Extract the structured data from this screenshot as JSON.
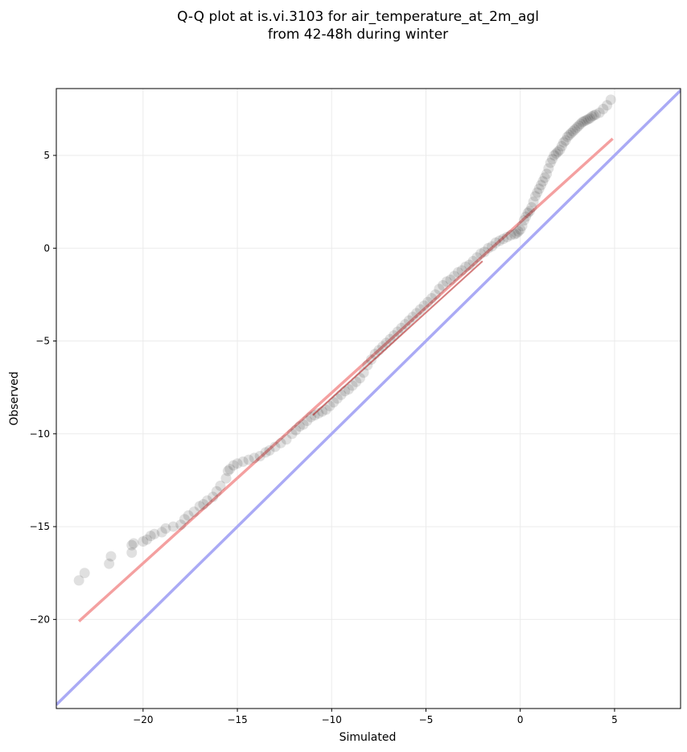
{
  "chart_data": {
    "type": "scatter",
    "title_lines": [
      "Q-Q plot at is.vi.3103 for air_temperature_at_2m_agl",
      "from 42-48h during winter"
    ],
    "xlabel": "Simulated",
    "ylabel": "Observed",
    "xlim": [
      -24.6,
      8.5
    ],
    "ylim": [
      -24.8,
      8.6
    ],
    "xticks": [
      -20,
      -15,
      -10,
      -5,
      0,
      5
    ],
    "yticks": [
      -20,
      -15,
      -10,
      -5,
      0,
      5
    ],
    "xtick_labels": [
      "−20",
      "−15",
      "−10",
      "−5",
      "0",
      "5"
    ],
    "ytick_labels": [
      "−20",
      "−15",
      "−10",
      "−5",
      "0",
      "5"
    ],
    "grid": true,
    "colors": {
      "points": "#000000",
      "fit_line": "#f4a0a0",
      "identity_line": "#aaaaf5",
      "grid": "#ebebeb"
    },
    "series": [
      {
        "kind": "quantile_points",
        "x": [
          -23.4,
          -23.1,
          -21.8,
          -21.7,
          -20.6,
          -20.6,
          -20.5,
          -20.0,
          -19.8,
          -19.6,
          -19.4,
          -19.0,
          -18.8,
          -18.4,
          -18.0,
          -17.8,
          -17.6,
          -17.3,
          -17.0,
          -16.8,
          -16.6,
          -16.3,
          -16.1,
          -15.9,
          -15.6,
          -15.5,
          -15.4,
          -15.2,
          -15.0,
          -14.7,
          -14.4,
          -14.1,
          -13.8,
          -13.5,
          -13.3,
          -13.0,
          -12.7,
          -12.4,
          -12.1,
          -11.9,
          -11.7,
          -11.5,
          -11.3,
          -11.1,
          -10.9,
          -10.7,
          -10.5,
          -10.3,
          -10.1,
          -9.9,
          -9.7,
          -9.5,
          -9.3,
          -9.1,
          -8.9,
          -8.7,
          -8.5,
          -8.3,
          -8.1,
          -7.9,
          -7.7,
          -7.5,
          -7.3,
          -7.1,
          -6.9,
          -6.7,
          -6.5,
          -6.3,
          -6.1,
          -5.9,
          -5.7,
          -5.5,
          -5.3,
          -5.1,
          -4.9,
          -4.7,
          -4.5,
          -4.3,
          -4.1,
          -3.9,
          -3.7,
          -3.5,
          -3.3,
          -3.1,
          -2.9,
          -2.7,
          -2.5,
          -2.3,
          -2.1,
          -1.9,
          -1.7,
          -1.5,
          -1.3,
          -1.1,
          -0.9,
          -0.7,
          -0.5,
          -0.3,
          -0.2,
          -0.1,
          0.0,
          0.1,
          0.2,
          0.3,
          0.4,
          0.5,
          0.6,
          0.7,
          0.8,
          0.9,
          1.0,
          1.1,
          1.2,
          1.3,
          1.4,
          1.5,
          1.6,
          1.7,
          1.8,
          1.9,
          2.0,
          2.1,
          2.2,
          2.3,
          2.4,
          2.5,
          2.6,
          2.7,
          2.8,
          2.9,
          3.0,
          3.1,
          3.2,
          3.3,
          3.4,
          3.5,
          3.6,
          3.7,
          3.8,
          3.9,
          4.0,
          4.2,
          4.4,
          4.6,
          4.8
        ],
        "y": [
          -17.9,
          -17.5,
          -17.0,
          -16.6,
          -16.4,
          -16.0,
          -15.9,
          -15.8,
          -15.7,
          -15.5,
          -15.4,
          -15.3,
          -15.1,
          -15.0,
          -14.9,
          -14.6,
          -14.4,
          -14.2,
          -13.9,
          -13.8,
          -13.6,
          -13.4,
          -13.1,
          -12.8,
          -12.4,
          -12.0,
          -11.9,
          -11.7,
          -11.6,
          -11.5,
          -11.4,
          -11.3,
          -11.2,
          -11.0,
          -10.9,
          -10.7,
          -10.5,
          -10.3,
          -10.0,
          -9.8,
          -9.6,
          -9.5,
          -9.3,
          -9.1,
          -9.0,
          -8.9,
          -8.8,
          -8.7,
          -8.5,
          -8.3,
          -8.1,
          -7.9,
          -7.7,
          -7.6,
          -7.4,
          -7.2,
          -7.0,
          -6.7,
          -6.3,
          -6.0,
          -5.7,
          -5.5,
          -5.3,
          -5.1,
          -4.9,
          -4.7,
          -4.5,
          -4.3,
          -4.1,
          -3.9,
          -3.7,
          -3.5,
          -3.3,
          -3.1,
          -2.9,
          -2.7,
          -2.5,
          -2.2,
          -2.0,
          -1.8,
          -1.7,
          -1.5,
          -1.3,
          -1.2,
          -1.0,
          -0.9,
          -0.7,
          -0.5,
          -0.3,
          -0.2,
          0.0,
          0.1,
          0.3,
          0.4,
          0.5,
          0.6,
          0.7,
          0.75,
          0.8,
          0.9,
          1.0,
          1.2,
          1.5,
          1.7,
          1.9,
          2.0,
          2.2,
          2.5,
          2.8,
          3.0,
          3.2,
          3.4,
          3.6,
          3.8,
          4.0,
          4.3,
          4.6,
          4.8,
          5.0,
          5.1,
          5.2,
          5.3,
          5.5,
          5.7,
          5.8,
          6.0,
          6.1,
          6.2,
          6.3,
          6.4,
          6.5,
          6.6,
          6.7,
          6.8,
          6.85,
          6.9,
          6.95,
          7.0,
          7.1,
          7.15,
          7.2,
          7.3,
          7.5,
          7.7,
          8.0
        ]
      },
      {
        "kind": "fit_line",
        "x": [
          -23.4,
          4.9
        ],
        "y": [
          -20.1,
          5.9
        ]
      },
      {
        "kind": "identity_line",
        "x": [
          -24.6,
          8.5
        ],
        "y": [
          -24.6,
          8.5
        ]
      }
    ]
  }
}
